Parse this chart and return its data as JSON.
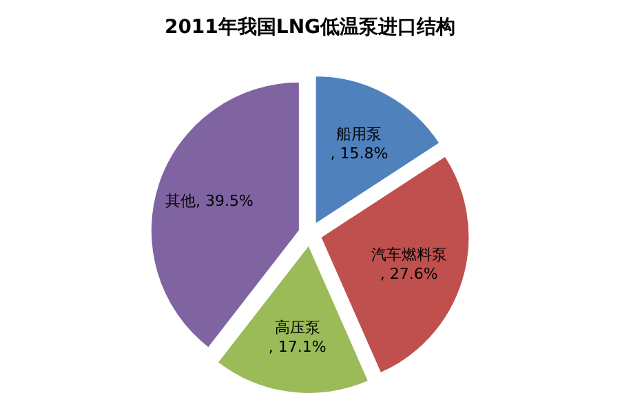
{
  "chart_data": {
    "type": "pie",
    "title": "2011年我国LNG低温泵进口结构",
    "categories": [
      "船用泵",
      "汽车燃料泵",
      "高压泵",
      "其他"
    ],
    "values": [
      15.8,
      27.6,
      17.1,
      39.5
    ],
    "colors": [
      "#4f81bd",
      "#c0504d",
      "#9bbb59",
      "#8064a2"
    ],
    "value_labels": [
      ", 15.8%",
      ", 27.6%",
      ", 17.1%",
      ", 39.5%"
    ]
  }
}
